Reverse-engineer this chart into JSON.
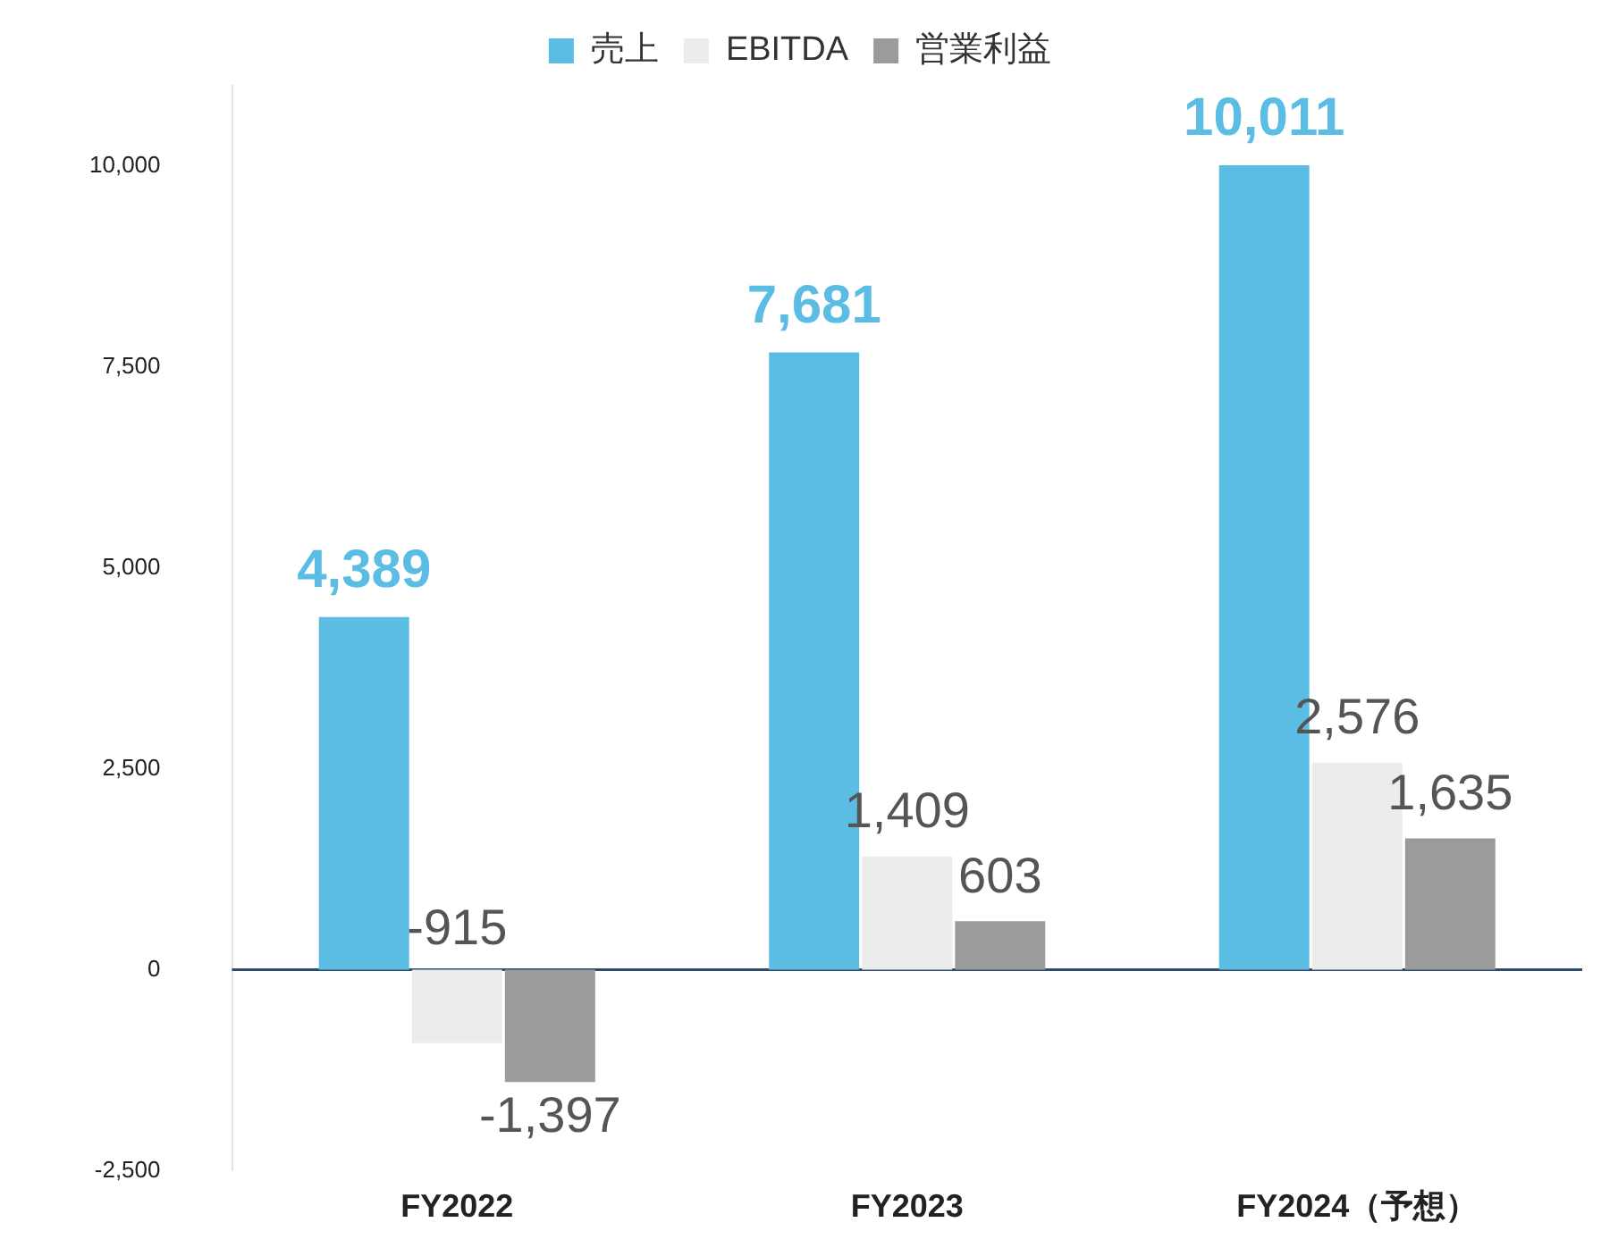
{
  "chart_data": {
    "type": "bar",
    "categories": [
      "FY2022",
      "FY2023",
      "FY2024（予想）"
    ],
    "series": [
      {
        "name": "売上",
        "color": "#5bbde3",
        "values": [
          4389,
          7681,
          10011
        ],
        "value_labels": [
          "4,389",
          "7,681",
          "10,011"
        ]
      },
      {
        "name": "EBITDA",
        "color": "#ececec",
        "values": [
          -915,
          1409,
          2576
        ],
        "value_labels": [
          "-915",
          "1,409",
          "2,576"
        ]
      },
      {
        "name": "営業利益",
        "color": "#9b9b9b",
        "values": [
          -1397,
          603,
          1635
        ],
        "value_labels": [
          "-1,397",
          "603",
          "1,635"
        ]
      }
    ],
    "ylim": [
      -2500,
      11000
    ],
    "yticks": [
      {
        "value": -2500,
        "label": "-2,500"
      },
      0,
      {
        "value": 2500,
        "label": "2,500"
      },
      {
        "value": 5000,
        "label": "5,000"
      },
      {
        "value": 7500,
        "label": "7,500"
      },
      {
        "value": 10000,
        "label": "10,000"
      }
    ],
    "ref_lines": [
      {
        "axis": "y",
        "value": 0,
        "color": "#2f4a6b"
      }
    ],
    "grid": false,
    "legend": "top"
  }
}
